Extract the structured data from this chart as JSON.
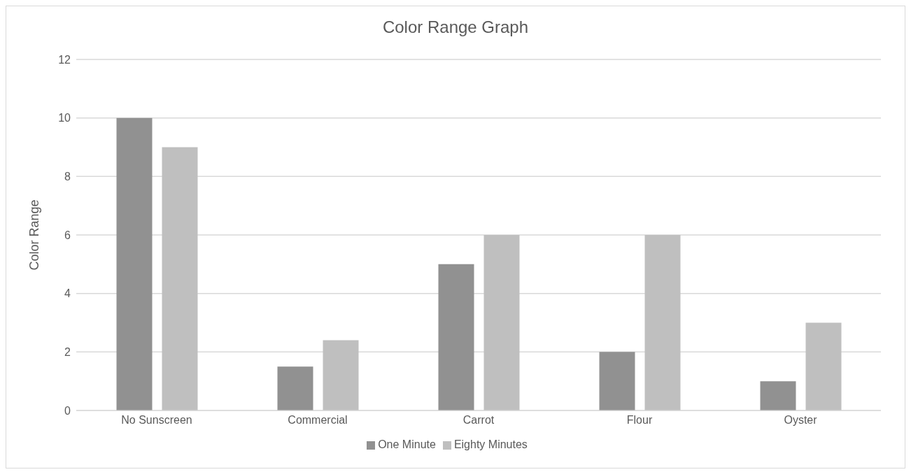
{
  "chart_data": {
    "type": "bar",
    "title": "Color Range Graph",
    "ylabel": "Color Range",
    "categories": [
      "No Sunscreen",
      "Commercial",
      "Carrot",
      "Flour",
      "Oyster"
    ],
    "series": [
      {
        "name": "One Minute",
        "color": "#919191",
        "values": [
          10,
          1.5,
          5,
          2,
          1
        ]
      },
      {
        "name": "Eighty Minutes",
        "color": "#bfbfbf",
        "values": [
          9,
          2.4,
          6,
          6,
          3
        ]
      }
    ],
    "ylim": [
      0,
      12
    ],
    "yticks": [
      0,
      2,
      4,
      6,
      8,
      10,
      12
    ],
    "grid": "y",
    "legend": "bottom"
  }
}
